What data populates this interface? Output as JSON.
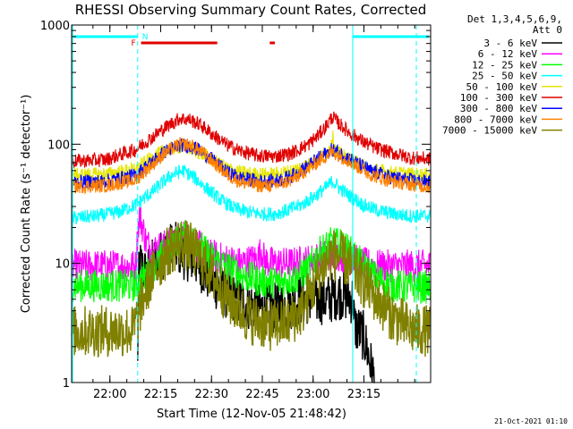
{
  "chart_data": {
    "type": "line",
    "title": "RHESSI Observing Summary Count Rates, Corrected",
    "xlabel": "Start Time (12-Nov-05 21:48:42)",
    "ylabel": "Corrected Count Rate (s⁻¹ detector⁻¹)",
    "y_scale": "log",
    "ylim": [
      1,
      1000
    ],
    "xlim_minutes": [
      0,
      106
    ],
    "x_ticks": [
      {
        "label": "22:00",
        "minute": 11.3
      },
      {
        "label": "22:15",
        "minute": 26.3
      },
      {
        "label": "22:30",
        "minute": 41.3
      },
      {
        "label": "22:45",
        "minute": 56.3
      },
      {
        "label": "23:00",
        "minute": 71.3
      },
      {
        "label": "23:15",
        "minute": 86.3
      }
    ],
    "y_ticks": [
      {
        "label": "1",
        "value": 1
      },
      {
        "label": "10",
        "value": 10
      },
      {
        "label": "100",
        "value": 100
      },
      {
        "label": "1000",
        "value": 1000
      }
    ],
    "legend_header": [
      "Det 1,3,4,5,6,9,",
      "Att 0"
    ],
    "legend_position": "right",
    "flags": {
      "night_label": "N",
      "flare_label": "F",
      "night_color": "#00ffff",
      "flare_color": "#e00000",
      "night_start_end": 19.5,
      "night_end_start": 83.0,
      "flare_bars": [
        [
          20.5,
          43.0
        ],
        [
          58.5,
          60.0
        ]
      ]
    },
    "series": [
      {
        "name": "3 - 6 keV",
        "color": "#000000",
        "x": [
          19.5,
          20.0,
          22,
          24,
          27,
          30,
          33,
          36,
          40,
          44,
          48,
          52,
          56,
          60,
          64,
          68,
          72,
          76,
          78,
          80,
          83,
          83.5,
          86,
          88,
          89.5
        ],
        "y": [
          1.3,
          10,
          8,
          10,
          12,
          14,
          12,
          11,
          8,
          6,
          5,
          4.5,
          4.2,
          4.2,
          4.5,
          5,
          5,
          5,
          5.5,
          5.5,
          5,
          3,
          2.5,
          1.5,
          1
        ]
      },
      {
        "name": "6 - 12 keV",
        "color": "#ff00ff",
        "x": [
          0,
          19,
          20,
          22,
          24,
          27,
          30,
          33,
          36,
          40,
          44,
          50,
          55,
          56,
          57,
          60,
          65,
          70,
          74,
          78,
          82,
          86,
          90,
          100,
          106
        ],
        "y": [
          9.5,
          9.5,
          25,
          15,
          13,
          14,
          15,
          17,
          15,
          12,
          11,
          10,
          11,
          13,
          10.5,
          10,
          10,
          10.5,
          11.5,
          12,
          11,
          10,
          9.5,
          9.5,
          9.5
        ]
      },
      {
        "name": "12 - 25 keV",
        "color": "#00ff00",
        "x": [
          0,
          19,
          22,
          25,
          28,
          31,
          34,
          37,
          40,
          44,
          50,
          56,
          62,
          66,
          70,
          74,
          77,
          80,
          83,
          86,
          90,
          95,
          100,
          106
        ],
        "y": [
          6.5,
          6.5,
          8,
          10,
          13,
          16,
          17,
          15,
          12,
          10,
          8,
          7,
          7,
          7.5,
          9,
          13,
          15,
          14,
          12,
          9.5,
          7.5,
          6.5,
          6.3,
          6.3
        ]
      },
      {
        "name": "25 - 50 keV",
        "color": "#00ffff",
        "x": [
          0,
          8,
          14,
          19,
          24,
          27,
          30,
          33,
          36,
          40,
          44,
          48,
          52,
          56,
          60,
          64,
          68,
          72,
          75,
          77,
          79,
          82,
          86,
          90,
          95,
          100,
          106
        ],
        "y": [
          24,
          25,
          27,
          31,
          40,
          48,
          56,
          60,
          53,
          42,
          34,
          29,
          27,
          26,
          26,
          28,
          31,
          37,
          43,
          49,
          43,
          37,
          31,
          28,
          26,
          25,
          25
        ]
      },
      {
        "name": "50 - 100 keV",
        "color": "#e6e600",
        "x": [
          0,
          10,
          19,
          24,
          28,
          32,
          35,
          38,
          42,
          46,
          50,
          55,
          60,
          65,
          70,
          74,
          76,
          77,
          78,
          80,
          84,
          88,
          94,
          100,
          106
        ],
        "y": [
          55,
          56,
          62,
          78,
          90,
          95,
          92,
          84,
          72,
          63,
          58,
          56,
          56,
          60,
          68,
          80,
          90,
          118,
          88,
          80,
          70,
          62,
          58,
          56,
          55
        ]
      },
      {
        "name": "100 - 300 keV",
        "color": "#e00000",
        "x": [
          0,
          10,
          19,
          24,
          28,
          32,
          35,
          38,
          42,
          46,
          50,
          55,
          60,
          65,
          70,
          73,
          75,
          77,
          79,
          82,
          86,
          90,
          95,
          100,
          106
        ],
        "y": [
          72,
          74,
          90,
          115,
          140,
          165,
          160,
          145,
          118,
          98,
          87,
          80,
          79,
          84,
          100,
          120,
          140,
          170,
          148,
          125,
          105,
          92,
          84,
          77,
          75
        ]
      },
      {
        "name": "300 - 800 keV",
        "color": "#0000ff",
        "x": [
          0,
          10,
          19,
          24,
          28,
          32,
          35,
          38,
          42,
          46,
          50,
          55,
          60,
          65,
          70,
          74,
          77,
          80,
          84,
          88,
          94,
          100,
          106
        ],
        "y": [
          48,
          49,
          55,
          72,
          88,
          98,
          96,
          88,
          72,
          58,
          52,
          49,
          49,
          54,
          66,
          80,
          90,
          82,
          70,
          60,
          53,
          50,
          48
        ]
      },
      {
        "name": "800 - 7000 keV",
        "color": "#ff8000",
        "x": [
          0,
          10,
          19,
          24,
          28,
          32,
          35,
          38,
          42,
          46,
          50,
          55,
          60,
          65,
          70,
          74,
          77,
          80,
          84,
          88,
          94,
          100,
          106
        ],
        "y": [
          44,
          45,
          50,
          68,
          86,
          100,
          98,
          88,
          70,
          55,
          48,
          45,
          45,
          50,
          62,
          76,
          86,
          78,
          66,
          56,
          49,
          46,
          44
        ]
      },
      {
        "name": "7000 - 15000 keV",
        "color": "#808000",
        "x": [
          0,
          18,
          19.5,
          21,
          23,
          26,
          29,
          32,
          35,
          38,
          42,
          46,
          52,
          58,
          64,
          68,
          71,
          74,
          77,
          80,
          83,
          86,
          90,
          95,
          100,
          106
        ],
        "y": [
          2.7,
          2.7,
          3.5,
          5,
          7,
          10,
          13,
          15,
          13.5,
          11,
          7.5,
          5,
          3.5,
          3,
          3.2,
          4,
          6,
          9,
          12,
          11,
          9,
          7,
          5,
          3.5,
          2.8,
          2.7
        ]
      }
    ],
    "footer_date": "21-Oct-2021 01:10"
  }
}
